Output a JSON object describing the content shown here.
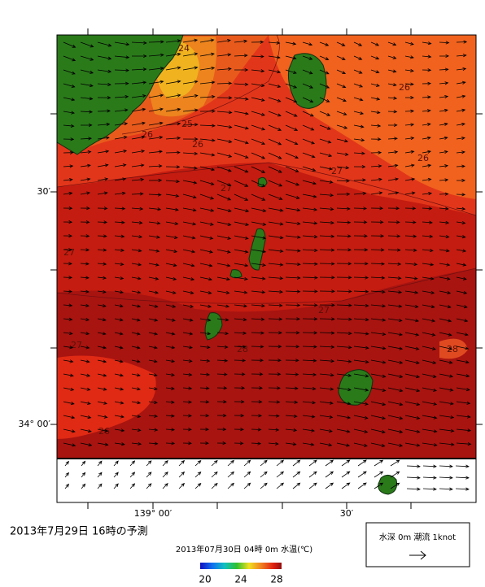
{
  "map": {
    "title": "2013年7月29日  16時の予測",
    "subtitle": "2013年07月30日 04時 0m 水温(℃)",
    "lat_labels": [
      "30′",
      "34° 00′"
    ],
    "lon_labels": [
      "139° 00′",
      "30′"
    ],
    "contour_labels": [
      24,
      25,
      26,
      26,
      26,
      26,
      26,
      27,
      27,
      27,
      27,
      27,
      28,
      28
    ],
    "colorbar_ticks": [
      20,
      24,
      28
    ],
    "legend_text": "水深 0m 潮流 1knot"
  }
}
